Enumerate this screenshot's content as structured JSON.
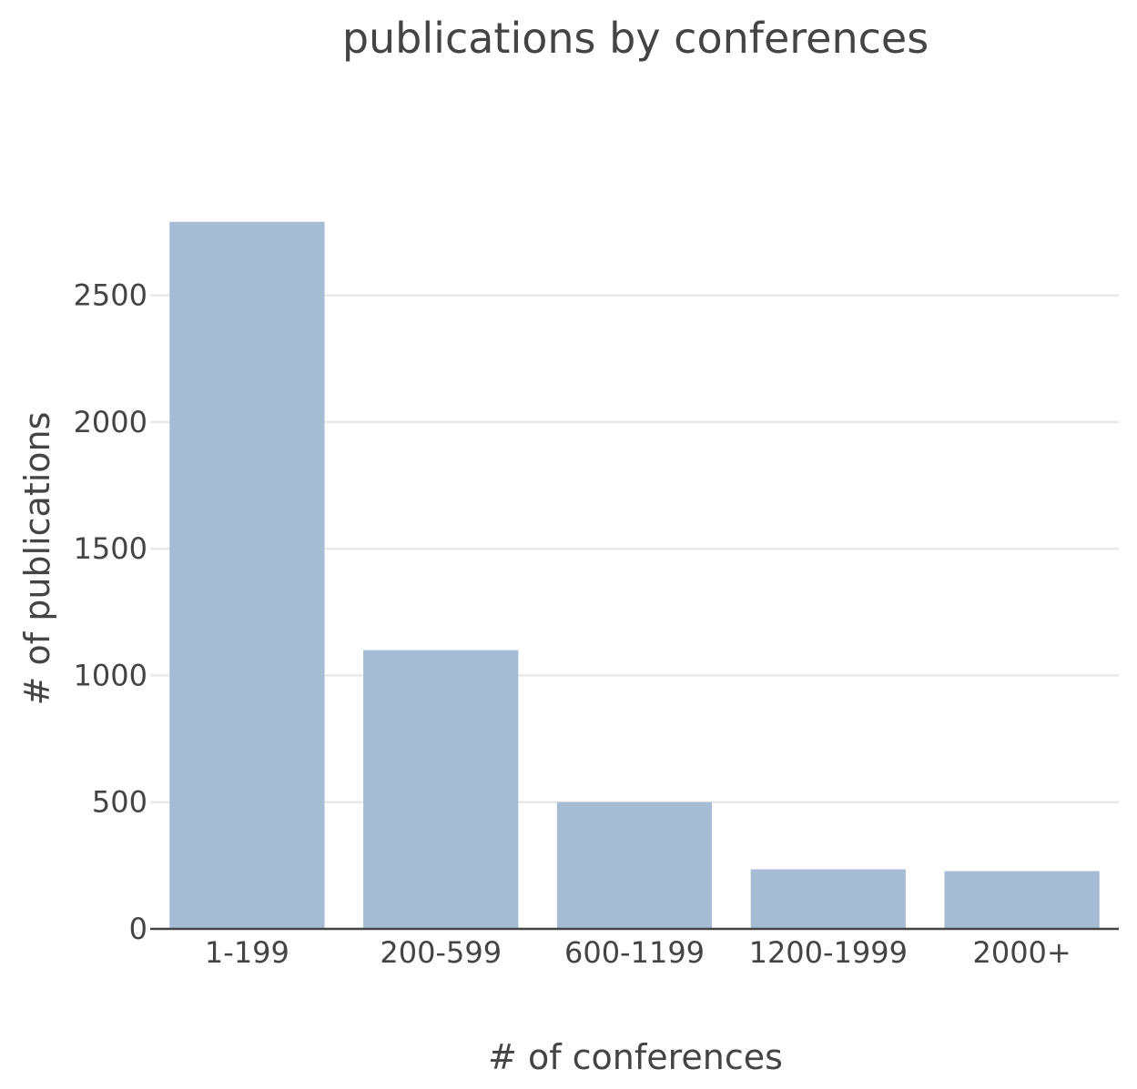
{
  "chart_data": {
    "type": "bar",
    "title": "publications by conferences",
    "xlabel": "# of conferences",
    "ylabel": "# of publications",
    "categories": [
      "1-199",
      "200-599",
      "600-1199",
      "1200-1999",
      "2000+"
    ],
    "values": [
      2790,
      1100,
      500,
      235,
      228
    ],
    "ylim": [
      0,
      2800
    ],
    "yticks": [
      0,
      500,
      1000,
      1500,
      2000,
      2500
    ],
    "grid": true,
    "legend": "none",
    "bar_color": "#a6bcd4"
  }
}
